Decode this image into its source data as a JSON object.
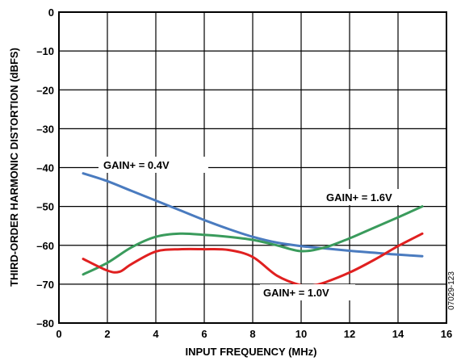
{
  "chart_data": {
    "type": "line",
    "title": "",
    "xlabel": "INPUT FREQUENCY (MHz)",
    "ylabel": "THIRD-ORDER HARMONIC DISTORTION (dBFS)",
    "xlim": [
      0,
      16
    ],
    "ylim": [
      -80,
      0
    ],
    "xticks": [
      0,
      2,
      4,
      6,
      8,
      10,
      12,
      14,
      16
    ],
    "yticks": [
      0,
      -10,
      -20,
      -30,
      -40,
      -50,
      -60,
      -70,
      -80
    ],
    "xtick_labels": [
      "0",
      "2",
      "4",
      "6",
      "8",
      "10",
      "12",
      "14",
      "16"
    ],
    "ytick_labels": [
      "0",
      "–10",
      "–20",
      "–30",
      "–40",
      "–50",
      "–60",
      "–70",
      "–80"
    ],
    "grid": true,
    "legend": "inline labels",
    "series": [
      {
        "name": "GAIN+ = 0.4V",
        "color": "#4a7bbf",
        "x": [
          1,
          2,
          3,
          4,
          5,
          6,
          7,
          8,
          9,
          10,
          11,
          12,
          13,
          14,
          15
        ],
        "y": [
          -41.5,
          -43.5,
          -46,
          -48.5,
          -51,
          -53.5,
          -55.8,
          -57.8,
          -59.3,
          -60.2,
          -60.8,
          -61.4,
          -61.9,
          -62.4,
          -62.8
        ]
      },
      {
        "name": "GAIN+ = 1.6V",
        "color": "#3a9b5c",
        "x": [
          1,
          2,
          3,
          4,
          5,
          6,
          7,
          8,
          9,
          10,
          11,
          12,
          13,
          14,
          15
        ],
        "y": [
          -67.5,
          -64.5,
          -60.5,
          -57.8,
          -57,
          -57.3,
          -57.8,
          -58.6,
          -60,
          -61.5,
          -60.5,
          -58.2,
          -55.5,
          -52.8,
          -50
        ]
      },
      {
        "name": "GAIN+ = 1.0V",
        "color": "#e02020",
        "x": [
          1,
          2,
          2.5,
          3,
          4,
          5,
          6,
          7,
          8,
          9,
          10,
          10.5,
          11,
          12,
          13,
          14,
          15
        ],
        "y": [
          -63.5,
          -66.5,
          -66.8,
          -64.8,
          -61.6,
          -61,
          -61,
          -61.2,
          -63,
          -67.8,
          -70.3,
          -70.3,
          -69.5,
          -67,
          -63.8,
          -60.2,
          -57
        ]
      }
    ],
    "labels": {
      "gain04": "GAIN+ = 0.4V",
      "gain16": "GAIN+ = 1.6V",
      "gain10": "GAIN+ = 1.0V"
    },
    "figure_id": "07029-123"
  }
}
